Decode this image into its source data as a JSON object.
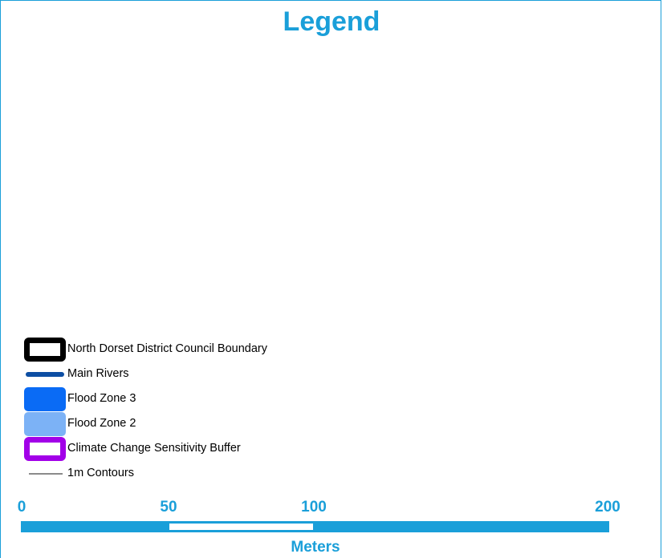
{
  "legend": {
    "title": "Legend",
    "items": [
      {
        "label": "North Dorset District Council Boundary",
        "icon": "boundary-outline-swatch",
        "color": "#000000"
      },
      {
        "label": "Main Rivers",
        "icon": "river-line-swatch",
        "color": "#0d4ea3"
      },
      {
        "label": "Flood Zone 3",
        "icon": "fill-swatch",
        "color": "#0a6bf5"
      },
      {
        "label": "Flood Zone 2",
        "icon": "fill-swatch",
        "color": "#7cb2f6"
      },
      {
        "label": "Climate Change Sensitivity Buffer",
        "icon": "outline-swatch",
        "color": "#a200e8"
      },
      {
        "label": "1m Contours",
        "icon": "contour-line-swatch",
        "color": "#8b8b8b"
      }
    ]
  },
  "scalebar": {
    "ticks": [
      "0",
      "50",
      "100",
      "200"
    ],
    "units": "Meters",
    "color": "#1a9fd9"
  }
}
